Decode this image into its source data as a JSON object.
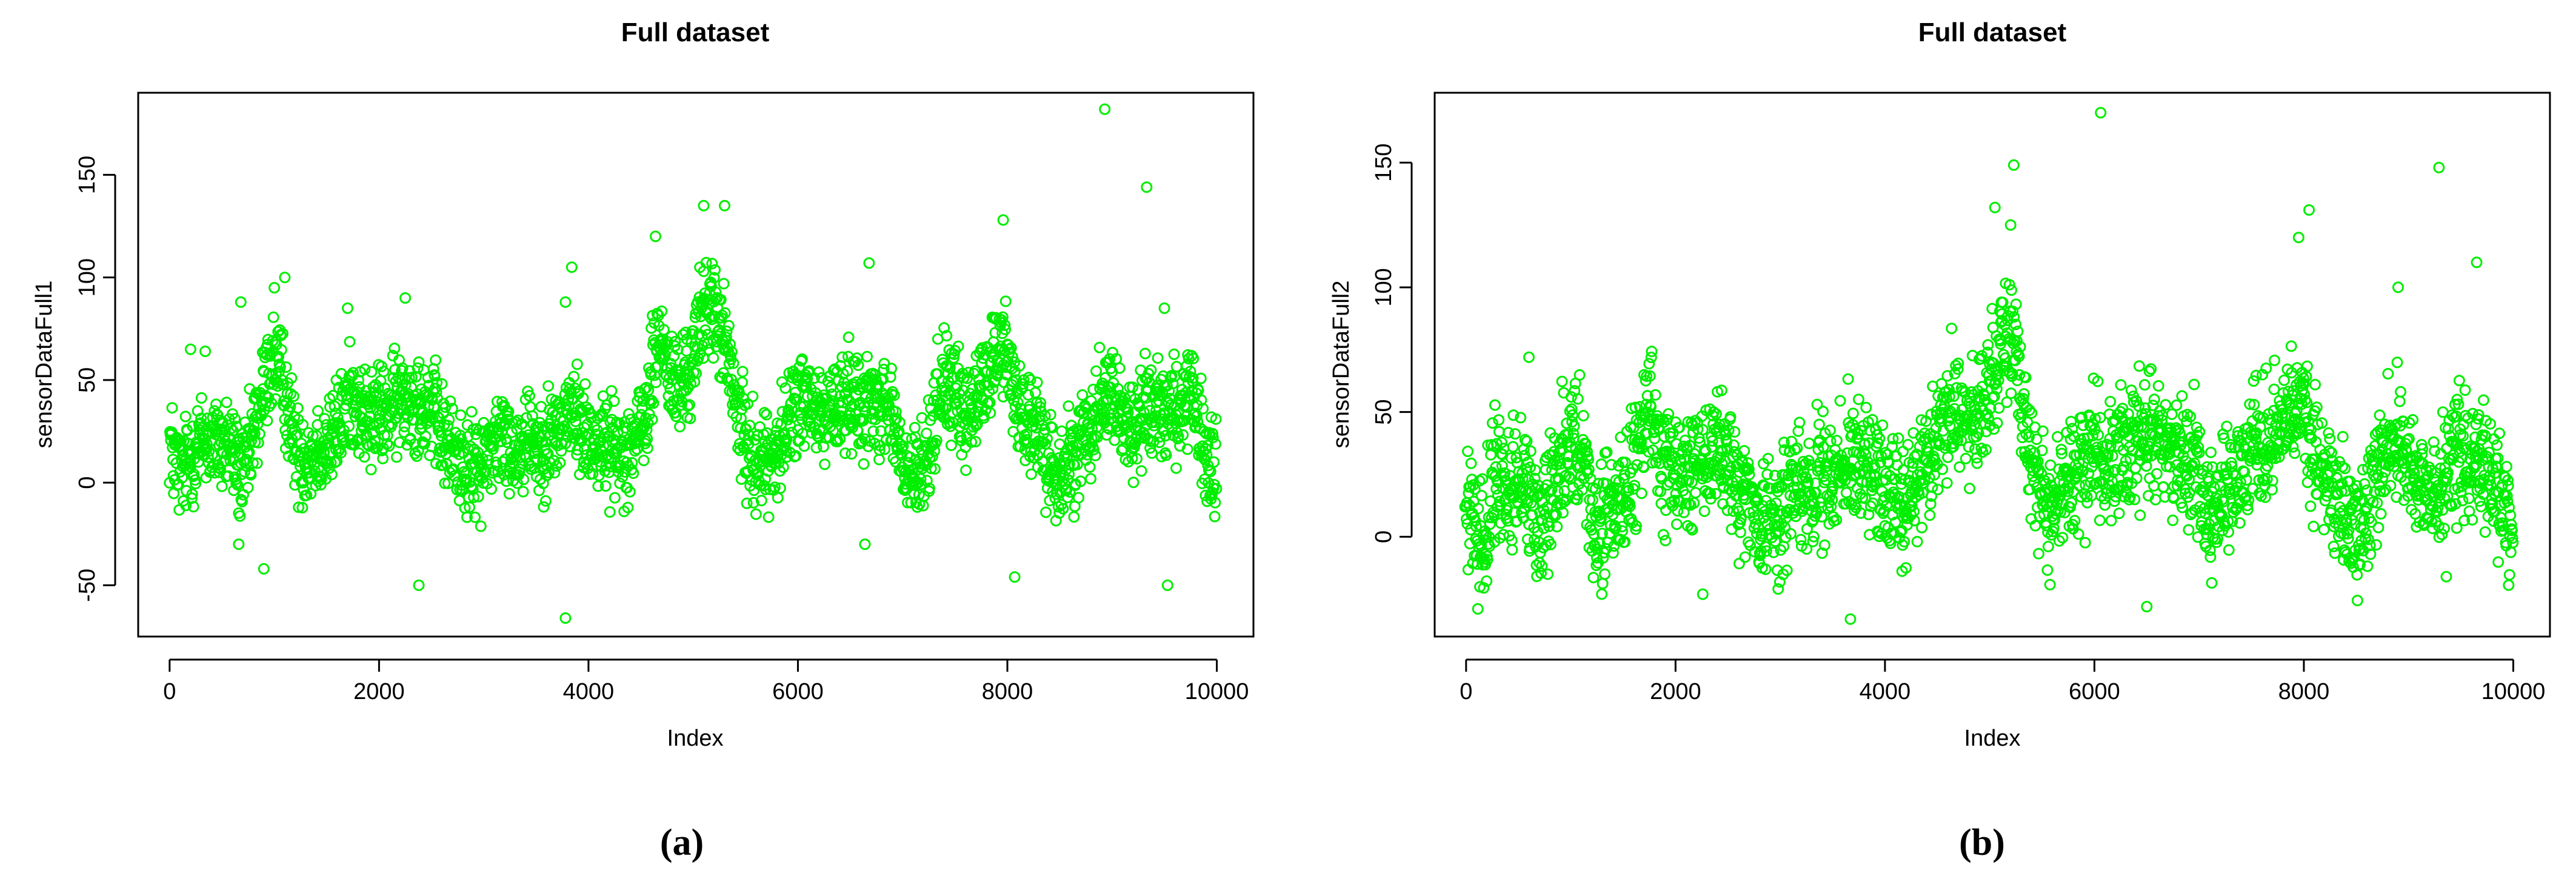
{
  "chart_data": [
    {
      "type": "scatter",
      "title": "Full dataset",
      "xlabel": "Index",
      "ylabel": "sensorDataFull1",
      "panel_label": "(a)",
      "xlim": [
        -300,
        10350
      ],
      "ylim": [
        -75,
        190
      ],
      "xticks": [
        0,
        2000,
        4000,
        6000,
        8000,
        10000
      ],
      "yticks": [
        -50,
        0,
        50,
        100,
        150
      ],
      "grid": false,
      "legend": "none",
      "point_color": "#00ee00",
      "marker": "open-circle",
      "n_points": 10000,
      "trend": [
        [
          0,
          22
        ],
        [
          40,
          12
        ],
        [
          100,
          5
        ],
        [
          180,
          10
        ],
        [
          250,
          18
        ],
        [
          320,
          20
        ],
        [
          400,
          20
        ],
        [
          500,
          18
        ],
        [
          560,
          20
        ],
        [
          620,
          12
        ],
        [
          700,
          2
        ],
        [
          780,
          18
        ],
        [
          860,
          35
        ],
        [
          920,
          50
        ],
        [
          980,
          60
        ],
        [
          1040,
          55
        ],
        [
          1090,
          48
        ],
        [
          1150,
          30
        ],
        [
          1220,
          14
        ],
        [
          1300,
          12
        ],
        [
          1380,
          16
        ],
        [
          1460,
          18
        ],
        [
          1540,
          20
        ],
        [
          1620,
          28
        ],
        [
          1700,
          40
        ],
        [
          1760,
          42
        ],
        [
          1820,
          35
        ],
        [
          1900,
          30
        ],
        [
          2000,
          33
        ],
        [
          2100,
          35
        ],
        [
          2200,
          40
        ],
        [
          2300,
          42
        ],
        [
          2400,
          40
        ],
        [
          2500,
          35
        ],
        [
          2560,
          30
        ],
        [
          2620,
          20
        ],
        [
          2700,
          15
        ],
        [
          2800,
          10
        ],
        [
          2880,
          5
        ],
        [
          2960,
          8
        ],
        [
          3060,
          18
        ],
        [
          3160,
          22
        ],
        [
          3260,
          15
        ],
        [
          3360,
          20
        ],
        [
          3440,
          25
        ],
        [
          3520,
          18
        ],
        [
          3600,
          20
        ],
        [
          3700,
          25
        ],
        [
          3780,
          30
        ],
        [
          3840,
          35
        ],
        [
          3900,
          30
        ],
        [
          4000,
          22
        ],
        [
          4100,
          20
        ],
        [
          4200,
          18
        ],
        [
          4300,
          15
        ],
        [
          4400,
          18
        ],
        [
          4500,
          25
        ],
        [
          4580,
          40
        ],
        [
          4640,
          65
        ],
        [
          4700,
          70
        ],
        [
          4780,
          50
        ],
        [
          4860,
          45
        ],
        [
          4960,
          55
        ],
        [
          5020,
          65
        ],
        [
          5080,
          80
        ],
        [
          5150,
          90
        ],
        [
          5220,
          80
        ],
        [
          5300,
          70
        ],
        [
          5380,
          45
        ],
        [
          5460,
          25
        ],
        [
          5540,
          15
        ],
        [
          5640,
          10
        ],
        [
          5760,
          12
        ],
        [
          5860,
          20
        ],
        [
          5940,
          35
        ],
        [
          6020,
          42
        ],
        [
          6120,
          35
        ],
        [
          6220,
          32
        ],
        [
          6320,
          35
        ],
        [
          6420,
          40
        ],
        [
          6520,
          42
        ],
        [
          6620,
          40
        ],
        [
          6700,
          38
        ],
        [
          6800,
          40
        ],
        [
          6880,
          35
        ],
        [
          6960,
          20
        ],
        [
          7000,
          5
        ],
        [
          7100,
          2
        ],
        [
          7200,
          5
        ],
        [
          7280,
          25
        ],
        [
          7340,
          45
        ],
        [
          7420,
          50
        ],
        [
          7500,
          42
        ],
        [
          7580,
          30
        ],
        [
          7660,
          35
        ],
        [
          7740,
          45
        ],
        [
          7820,
          55
        ],
        [
          7900,
          65
        ],
        [
          7960,
          70
        ],
        [
          8020,
          55
        ],
        [
          8100,
          40
        ],
        [
          8180,
          30
        ],
        [
          8260,
          25
        ],
        [
          8360,
          15
        ],
        [
          8440,
          5
        ],
        [
          8520,
          3
        ],
        [
          8600,
          10
        ],
        [
          8700,
          20
        ],
        [
          8800,
          30
        ],
        [
          8900,
          40
        ],
        [
          8960,
          50
        ],
        [
          9020,
          42
        ],
        [
          9100,
          30
        ],
        [
          9200,
          25
        ],
        [
          9300,
          35
        ],
        [
          9400,
          40
        ],
        [
          9500,
          38
        ],
        [
          9600,
          35
        ],
        [
          9700,
          40
        ],
        [
          9780,
          38
        ],
        [
          9850,
          22
        ],
        [
          9920,
          8
        ],
        [
          9980,
          5
        ]
      ],
      "outliers": [
        [
          8930,
          182
        ],
        [
          9330,
          144
        ],
        [
          5100,
          135
        ],
        [
          5300,
          135
        ],
        [
          7960,
          128
        ],
        [
          4640,
          120
        ],
        [
          1100,
          100
        ],
        [
          1000,
          95
        ],
        [
          6680,
          107
        ],
        [
          3840,
          105
        ],
        [
          3780,
          88
        ],
        [
          2250,
          90
        ],
        [
          1700,
          85
        ],
        [
          680,
          88
        ],
        [
          9500,
          85
        ],
        [
          900,
          -42
        ],
        [
          660,
          -30
        ],
        [
          6640,
          -30
        ],
        [
          2380,
          -50
        ],
        [
          9530,
          -50
        ],
        [
          8070,
          -46
        ],
        [
          3780,
          -66
        ],
        [
          200,
          65
        ],
        [
          340,
          64
        ]
      ]
    },
    {
      "type": "scatter",
      "title": "Full dataset",
      "xlabel": "Index",
      "ylabel": "sensorDataFull2",
      "panel_label": "(b)",
      "xlim": [
        -300,
        10350
      ],
      "ylim": [
        -40,
        178
      ],
      "xticks": [
        0,
        2000,
        4000,
        6000,
        8000,
        10000
      ],
      "yticks": [
        0,
        50,
        100,
        150
      ],
      "grid": false,
      "legend": "none",
      "point_color": "#00ee00",
      "marker": "open-circle",
      "n_points": 10000,
      "trend": [
        [
          0,
          10
        ],
        [
          60,
          3
        ],
        [
          140,
          -2
        ],
        [
          200,
          5
        ],
        [
          260,
          20
        ],
        [
          340,
          22
        ],
        [
          440,
          20
        ],
        [
          540,
          22
        ],
        [
          620,
          15
        ],
        [
          700,
          5
        ],
        [
          780,
          15
        ],
        [
          860,
          25
        ],
        [
          940,
          35
        ],
        [
          1000,
          40
        ],
        [
          1080,
          32
        ],
        [
          1160,
          20
        ],
        [
          1240,
          5
        ],
        [
          1300,
          -2
        ],
        [
          1360,
          8
        ],
        [
          1460,
          15
        ],
        [
          1560,
          22
        ],
        [
          1660,
          35
        ],
        [
          1760,
          55
        ],
        [
          1800,
          45
        ],
        [
          1880,
          25
        ],
        [
          1980,
          22
        ],
        [
          2080,
          25
        ],
        [
          2180,
          30
        ],
        [
          2280,
          28
        ],
        [
          2380,
          32
        ],
        [
          2480,
          30
        ],
        [
          2560,
          25
        ],
        [
          2660,
          18
        ],
        [
          2760,
          10
        ],
        [
          2860,
          3
        ],
        [
          2960,
          5
        ],
        [
          3060,
          15
        ],
        [
          3160,
          22
        ],
        [
          3260,
          18
        ],
        [
          3360,
          22
        ],
        [
          3460,
          20
        ],
        [
          3560,
          25
        ],
        [
          3660,
          30
        ],
        [
          3760,
          32
        ],
        [
          3860,
          28
        ],
        [
          3960,
          22
        ],
        [
          4060,
          18
        ],
        [
          4160,
          15
        ],
        [
          4260,
          18
        ],
        [
          4360,
          25
        ],
        [
          4460,
          35
        ],
        [
          4560,
          45
        ],
        [
          4660,
          55
        ],
        [
          4760,
          50
        ],
        [
          4860,
          45
        ],
        [
          4960,
          55
        ],
        [
          5040,
          68
        ],
        [
          5100,
          80
        ],
        [
          5180,
          85
        ],
        [
          5240,
          75
        ],
        [
          5320,
          55
        ],
        [
          5400,
          30
        ],
        [
          5480,
          15
        ],
        [
          5580,
          12
        ],
        [
          5700,
          18
        ],
        [
          5800,
          25
        ],
        [
          5900,
          30
        ],
        [
          6000,
          35
        ],
        [
          6100,
          30
        ],
        [
          6200,
          32
        ],
        [
          6300,
          35
        ],
        [
          6400,
          40
        ],
        [
          6500,
          38
        ],
        [
          6600,
          40
        ],
        [
          6700,
          35
        ],
        [
          6800,
          32
        ],
        [
          6880,
          30
        ],
        [
          6960,
          28
        ],
        [
          7020,
          15
        ],
        [
          7100,
          10
        ],
        [
          7200,
          12
        ],
        [
          7300,
          20
        ],
        [
          7400,
          30
        ],
        [
          7500,
          35
        ],
        [
          7600,
          35
        ],
        [
          7700,
          40
        ],
        [
          7800,
          45
        ],
        [
          7880,
          50
        ],
        [
          7960,
          50
        ],
        [
          8040,
          42
        ],
        [
          8120,
          30
        ],
        [
          8200,
          25
        ],
        [
          8300,
          20
        ],
        [
          8400,
          8
        ],
        [
          8480,
          0
        ],
        [
          8560,
          8
        ],
        [
          8660,
          20
        ],
        [
          8760,
          30
        ],
        [
          8860,
          40
        ],
        [
          8940,
          42
        ],
        [
          9020,
          30
        ],
        [
          9100,
          22
        ],
        [
          9200,
          15
        ],
        [
          9280,
          20
        ],
        [
          9360,
          30
        ],
        [
          9460,
          35
        ],
        [
          9560,
          32
        ],
        [
          9660,
          35
        ],
        [
          9760,
          33
        ],
        [
          9860,
          20
        ],
        [
          9930,
          10
        ],
        [
          9980,
          7
        ]
      ],
      "outliers": [
        [
          6060,
          170
        ],
        [
          9290,
          148
        ],
        [
          5230,
          149
        ],
        [
          5050,
          132
        ],
        [
          8050,
          131
        ],
        [
          9650,
          110
        ],
        [
          7950,
          120
        ],
        [
          8900,
          100
        ],
        [
          5200,
          125
        ],
        [
          600,
          72
        ],
        [
          -10,
          12
        ],
        [
          780,
          -15
        ],
        [
          2260,
          -23
        ],
        [
          3670,
          -33
        ],
        [
          6500,
          -28
        ],
        [
          9360,
          -16
        ]
      ]
    }
  ]
}
